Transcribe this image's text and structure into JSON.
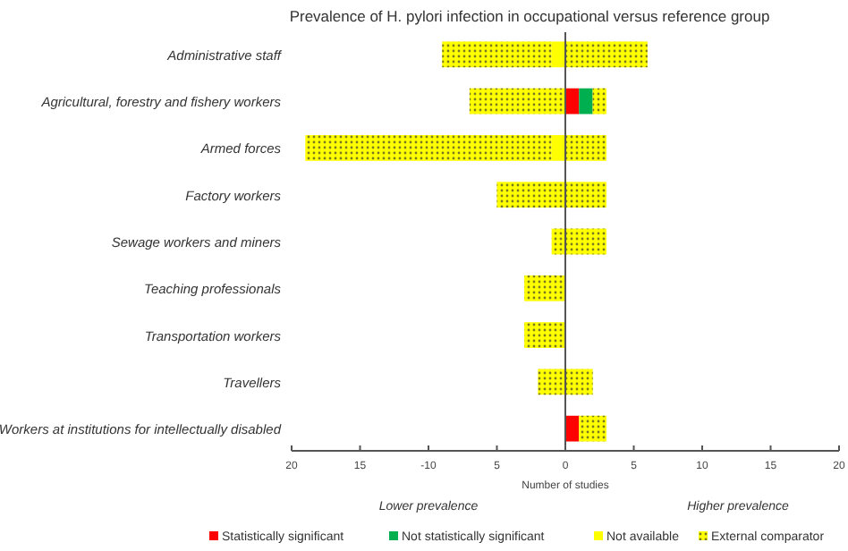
{
  "chart_data": {
    "type": "bar",
    "orientation": "horizontal",
    "stacked": true,
    "title": "Prevalence of H. pylori infection in occupational versus reference group",
    "xlabel": "Number of studies",
    "annotations": [
      "Lower prevalence",
      "Higher prevalence"
    ],
    "categories": [
      "Administrative staff",
      "Agricultural, forestry and fishery workers",
      "Armed forces",
      "Factory workers",
      "Sewage workers and miners",
      "Teaching professionals",
      "Transportation workers",
      "Travellers",
      "Workers at institutions for intellectually disabled"
    ],
    "series": [
      {
        "name": "Statistically significant",
        "color": "#ff0000",
        "values": [
          0,
          1,
          0,
          0,
          0,
          0,
          0,
          0,
          1
        ]
      },
      {
        "name": "Not statistically significant",
        "color": "#00b050",
        "values": [
          0,
          1,
          0,
          0,
          0,
          0,
          0,
          0,
          0
        ]
      },
      {
        "name": "Not available",
        "color": "#ffff00",
        "values": [
          -1,
          0,
          -1,
          0,
          0,
          0,
          0,
          0,
          0
        ]
      },
      {
        "name": "External comparator",
        "color": "#ffff00",
        "marker": "circle",
        "values": [
          -8,
          -7,
          -18,
          -5,
          -1,
          -3,
          -3,
          -2,
          0
        ]
      },
      {
        "color": "#ffff00",
        "marker": "circle",
        "values": [
          6,
          1,
          3,
          3,
          3,
          0,
          0,
          2,
          2
        ]
      }
    ],
    "xlim": [
      -20,
      20
    ],
    "xticks": [
      {
        "value": -20,
        "label": "20"
      },
      {
        "value": -15,
        "label": "15"
      },
      -10,
      {
        "value": -5,
        "label": "5"
      },
      0,
      5,
      10,
      15,
      20
    ],
    "legend": "bottom"
  }
}
